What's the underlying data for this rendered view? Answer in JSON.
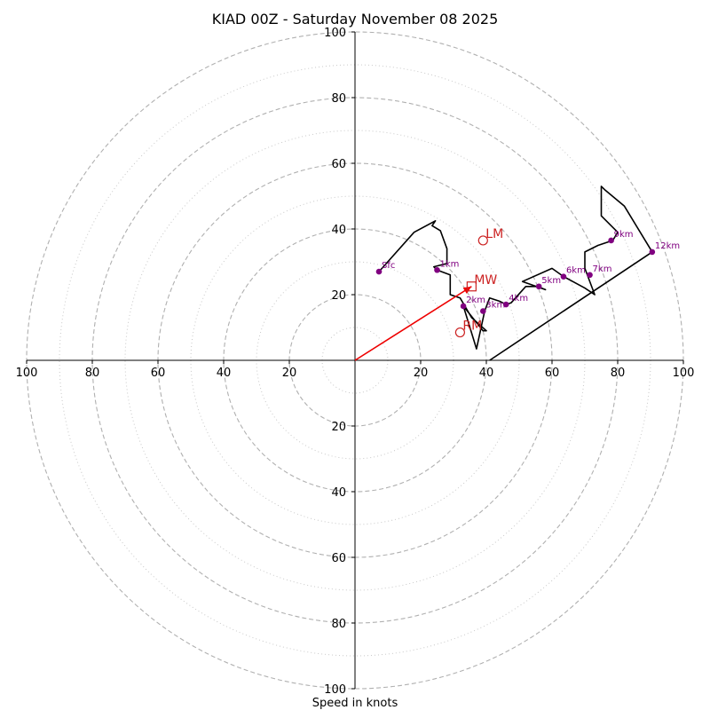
{
  "chart_data": {
    "type": "hodograph",
    "title": "KIAD 00Z - Saturday November 08 2025",
    "xlabel": "Speed in knots",
    "ylabel": "",
    "range": [
      -100,
      100
    ],
    "rings": {
      "major": [
        20,
        40,
        60,
        80,
        100
      ],
      "minor": [
        10,
        30,
        50,
        70,
        90
      ]
    },
    "tick_values": [
      100,
      80,
      60,
      40,
      20
    ],
    "colors": {
      "trace": "#000000",
      "markers": "#800080",
      "motion": "#cc2222",
      "vector": "#ee0000",
      "major_ring": "#b0b0b0",
      "minor_ring": "#c8c8c8"
    },
    "trace": [
      [
        7.3,
        27.0
      ],
      [
        18,
        39
      ],
      [
        24.5,
        42.5
      ],
      [
        23.5,
        41
      ],
      [
        26,
        39.5
      ],
      [
        28,
        34
      ],
      [
        28,
        29.5
      ],
      [
        24,
        28.5
      ],
      [
        25,
        27.5
      ],
      [
        29,
        26
      ],
      [
        29,
        20
      ],
      [
        32,
        19
      ],
      [
        35.5,
        13
      ],
      [
        40,
        9
      ],
      [
        39,
        9
      ],
      [
        33,
        16.5
      ],
      [
        37,
        3.5
      ],
      [
        39.5,
        15
      ],
      [
        41,
        19
      ],
      [
        44,
        18
      ],
      [
        46,
        17
      ],
      [
        47.5,
        17.5
      ],
      [
        52,
        22.5
      ],
      [
        55.5,
        22.5
      ],
      [
        58,
        21.5
      ],
      [
        51,
        24
      ],
      [
        60,
        28
      ],
      [
        63.5,
        25.5
      ],
      [
        70,
        22
      ],
      [
        73,
        20
      ],
      [
        70,
        28
      ],
      [
        70,
        33
      ],
      [
        74,
        35
      ],
      [
        78.5,
        36.5
      ],
      [
        80,
        39
      ],
      [
        75,
        44
      ],
      [
        75,
        53
      ],
      [
        76,
        52
      ],
      [
        82,
        47
      ],
      [
        90.5,
        33
      ],
      [
        41,
        0
      ]
    ],
    "height_markers": [
      {
        "label": "Sfc",
        "x": 7.3,
        "y": 27.0
      },
      {
        "label": "1km",
        "x": 25.0,
        "y": 27.5
      },
      {
        "label": "2km",
        "x": 33.0,
        "y": 16.5
      },
      {
        "label": "3km",
        "x": 39.0,
        "y": 15.0
      },
      {
        "label": "4km",
        "x": 46.0,
        "y": 17.0
      },
      {
        "label": "5km",
        "x": 56.0,
        "y": 22.5
      },
      {
        "label": "6km",
        "x": 63.5,
        "y": 25.5
      },
      {
        "label": "7km",
        "x": 71.5,
        "y": 26.0
      },
      {
        "label": "9km",
        "x": 78.0,
        "y": 36.5
      },
      {
        "label": "12km",
        "x": 90.5,
        "y": 33.0
      }
    ],
    "storm_motion": [
      {
        "label": "LM",
        "x": 39.0,
        "y": 36.5,
        "marker": "circle"
      },
      {
        "label": "MW",
        "x": 35.5,
        "y": 22.5,
        "marker": "square"
      },
      {
        "label": "RM",
        "x": 32.0,
        "y": 8.5,
        "marker": "circle"
      }
    ],
    "shear_vector": {
      "x": 35.5,
      "y": 22.5
    }
  }
}
